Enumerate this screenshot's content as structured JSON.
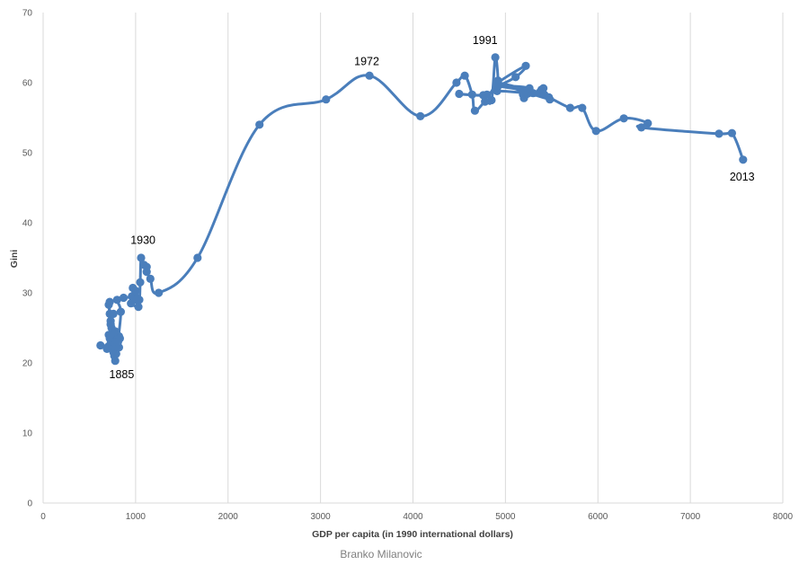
{
  "chart_data": {
    "type": "line",
    "title": "",
    "xlabel": "GDP per capita (in 1990 international dollars)",
    "ylabel": "Gini",
    "xlim": [
      0,
      8000
    ],
    "ylim": [
      0,
      70
    ],
    "xticks": [
      0,
      1000,
      2000,
      3000,
      4000,
      5000,
      6000,
      7000,
      8000
    ],
    "yticks": [
      0,
      10,
      20,
      30,
      40,
      50,
      60,
      70
    ],
    "grid": "vertical",
    "legend": "none",
    "line_color": "#4a7ebb",
    "series": [
      {
        "points": [
          [
            740,
            23.2
          ],
          [
            700,
            22.3
          ],
          [
            620,
            22.5
          ],
          [
            690,
            22.0
          ],
          [
            730,
            22.8
          ],
          [
            760,
            21.5
          ],
          [
            780,
            20.3
          ],
          [
            750,
            22.5
          ],
          [
            710,
            24.0
          ],
          [
            790,
            22.0
          ],
          [
            760,
            23.0
          ],
          [
            710,
            28.3
          ],
          [
            720,
            28.7
          ],
          [
            720,
            27.0
          ],
          [
            760,
            27.0
          ],
          [
            730,
            26.0
          ],
          [
            740,
            25.0
          ],
          [
            730,
            25.5
          ],
          [
            780,
            24.5
          ],
          [
            800,
            24.0
          ],
          [
            720,
            23.5
          ],
          [
            820,
            23.8
          ],
          [
            830,
            23.5
          ],
          [
            760,
            24.3
          ],
          [
            730,
            24.0
          ],
          [
            800,
            22.5
          ],
          [
            790,
            21.3
          ],
          [
            770,
            21.0
          ],
          [
            820,
            22.2
          ],
          [
            810,
            23.0
          ],
          [
            840,
            27.3
          ],
          [
            800,
            29.0
          ],
          [
            870,
            29.3
          ],
          [
            960,
            29.5
          ],
          [
            970,
            30.7
          ],
          [
            1000,
            30.3
          ],
          [
            1020,
            29.2
          ],
          [
            950,
            28.5
          ],
          [
            1030,
            28.0
          ],
          [
            1000,
            29.0
          ],
          [
            1040,
            29.0
          ],
          [
            1050,
            31.5
          ],
          [
            1060,
            35.0
          ],
          [
            1090,
            34.0
          ],
          [
            1120,
            33.7
          ],
          [
            1120,
            33.0
          ],
          [
            1160,
            32.0
          ],
          [
            1250,
            30.0
          ],
          [
            1670,
            35.0
          ],
          [
            2340,
            54.0
          ],
          [
            3060,
            57.6
          ],
          [
            3530,
            61.0
          ],
          [
            4080,
            55.2
          ],
          [
            4470,
            60.0
          ],
          [
            4560,
            61.0
          ],
          [
            4640,
            58.3
          ],
          [
            4670,
            56.0
          ],
          [
            4780,
            57.3
          ],
          [
            4850,
            57.5
          ],
          [
            4890,
            63.6
          ],
          [
            4920,
            60.3
          ],
          [
            4900,
            59.5
          ],
          [
            5110,
            60.8
          ],
          [
            5220,
            62.4
          ],
          [
            4920,
            60.0
          ],
          [
            4800,
            58.3
          ],
          [
            4500,
            58.4
          ],
          [
            4760,
            58.2
          ],
          [
            4910,
            58.8
          ],
          [
            5300,
            58.5
          ],
          [
            5390,
            59.0
          ],
          [
            5410,
            59.2
          ],
          [
            5200,
            57.8
          ],
          [
            5260,
            59.2
          ],
          [
            4920,
            59.5
          ],
          [
            5370,
            58.6
          ],
          [
            5190,
            58.3
          ],
          [
            5420,
            58.3
          ],
          [
            4910,
            60.0
          ],
          [
            5480,
            57.6
          ],
          [
            5470,
            57.9
          ],
          [
            5700,
            56.4
          ],
          [
            5830,
            56.4
          ],
          [
            5980,
            53.1
          ],
          [
            6280,
            54.9
          ],
          [
            6540,
            54.2
          ],
          [
            6470,
            53.6
          ],
          [
            7310,
            52.7
          ],
          [
            7450,
            52.8
          ],
          [
            7570,
            49.0
          ]
        ]
      }
    ],
    "annotations": [
      {
        "text": "1885",
        "x": 850,
        "y": 17.8
      },
      {
        "text": "1930",
        "x": 1080,
        "y": 37.0
      },
      {
        "text": "1972",
        "x": 3500,
        "y": 62.5
      },
      {
        "text": "1991",
        "x": 4780,
        "y": 65.5
      },
      {
        "text": "2013",
        "x": 7560,
        "y": 46.0
      }
    ]
  },
  "credit": "Branko Milanovic"
}
